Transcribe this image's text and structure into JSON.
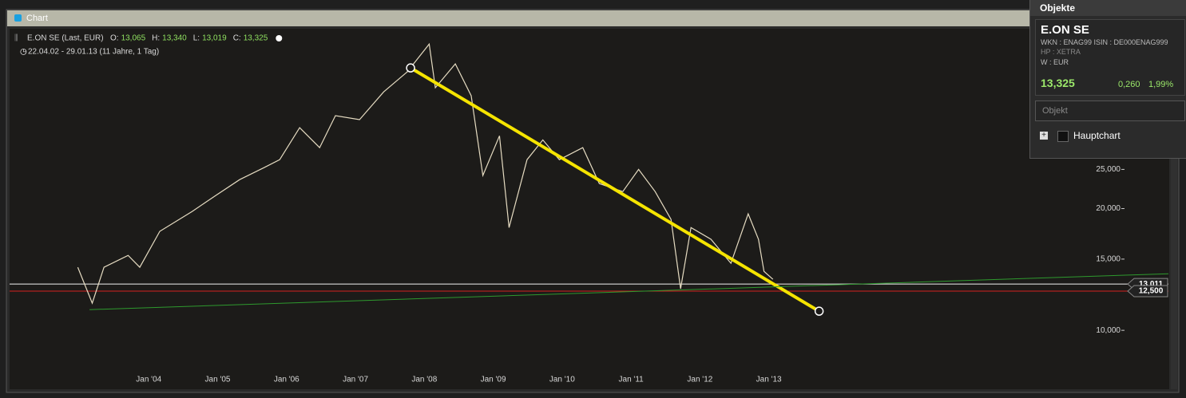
{
  "window": {
    "title": "Chart"
  },
  "legend": {
    "instrument": "E.ON SE (Last, EUR)",
    "ohlc": [
      {
        "label": "O:",
        "value": "13,065"
      },
      {
        "label": "H:",
        "value": "13,340"
      },
      {
        "label": "L:",
        "value": "13,019"
      },
      {
        "label": "C:",
        "value": "13,325"
      }
    ],
    "range": "22.04.02 - 29.01.13 (11 Jahre, 1 Tag)"
  },
  "chart_data": {
    "type": "line",
    "log_scale": true,
    "xlim": [
      2001.98,
      2018.8
    ],
    "xticks": [
      {
        "value": 2004,
        "label": "Jan '04"
      },
      {
        "value": 2005,
        "label": "Jan '05"
      },
      {
        "value": 2006,
        "label": "Jan '06"
      },
      {
        "value": 2007,
        "label": "Jan '07"
      },
      {
        "value": 2008,
        "label": "Jan '08"
      },
      {
        "value": 2009,
        "label": "Jan '09"
      },
      {
        "value": 2010,
        "label": "Jan '10"
      },
      {
        "value": 2011,
        "label": "Jan '11"
      },
      {
        "value": 2012,
        "label": "Jan '12"
      },
      {
        "value": 2013,
        "label": "Jan '13"
      }
    ],
    "ylim": [
      7150,
      54700
    ],
    "yticks": [
      {
        "value": 10000,
        "label": "10,000"
      },
      {
        "value": 15000,
        "label": "15,000"
      },
      {
        "value": 20000,
        "label": "20,000"
      },
      {
        "value": 25000,
        "label": "25,000"
      }
    ],
    "series": [
      {
        "color": "#e6dcc2",
        "x": [
          2002.97,
          2003.18,
          2003.35,
          2003.7,
          2003.87,
          2004.16,
          2004.63,
          2004.97,
          2005.32,
          2005.67,
          2005.9,
          2006.19,
          2006.48,
          2006.71,
          2007.06,
          2007.41,
          2007.75,
          2008.07,
          2008.16,
          2008.45,
          2008.68,
          2008.85,
          2009.09,
          2009.23,
          2009.49,
          2009.72,
          2009.96,
          2010.3,
          2010.54,
          2010.88,
          2011.11,
          2011.35,
          2011.58,
          2011.72,
          2011.87,
          2012.16,
          2012.45,
          2012.7,
          2012.85,
          2012.93,
          2013.06
        ],
        "values": [
          14320,
          11670,
          14320,
          15320,
          14320,
          17570,
          19680,
          21540,
          23590,
          25240,
          26420,
          31700,
          28300,
          33950,
          33190,
          38880,
          43550,
          51050,
          39810,
          45600,
          38020,
          24150,
          30270,
          17950,
          26420,
          29580,
          26420,
          28300,
          23070,
          22030,
          25000,
          22030,
          18800,
          12670,
          17950,
          16790,
          14650,
          19410,
          16790,
          13990,
          13370
        ]
      }
    ],
    "trendlines": [
      {
        "color": "#f5e400",
        "x": [
          2007.8,
          2013.73
        ],
        "values": [
          44560,
          11150
        ]
      },
      {
        "color": "#2e9a2e",
        "x": [
          2003.14,
          2018.8
        ],
        "values": [
          11250,
          13800
        ]
      }
    ],
    "levels": [
      {
        "value": 13011,
        "label": "13,011",
        "color": "#f2f2f2"
      },
      {
        "value": 12500,
        "label": "12,500",
        "color": "#d42020"
      }
    ]
  },
  "panel": {
    "title": "Objekte",
    "name": "E.ON SE",
    "ids": "WKN : ENAG99 ISIN : DE000ENAG999",
    "exchange": "HP : XETRA",
    "currency": "W : EUR",
    "price": "13,325",
    "change": "0,260",
    "change_pct": "1,99%",
    "search_placeholder": "Objekt",
    "item": "Hauptchart"
  }
}
